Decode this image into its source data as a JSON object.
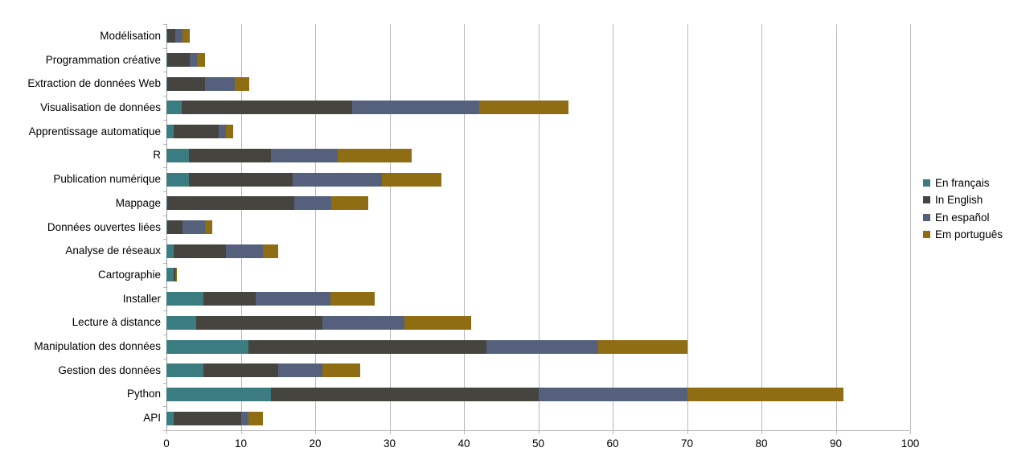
{
  "chart_data": {
    "type": "bar",
    "orientation": "horizontal",
    "stacked": true,
    "title": "",
    "xlabel": "",
    "ylabel": "",
    "xlim": [
      0,
      100
    ],
    "x_ticks": [
      0,
      10,
      20,
      30,
      40,
      50,
      60,
      70,
      80,
      90,
      100
    ],
    "grid": true,
    "legend_position": "right",
    "background_color": "#ffffff",
    "gridline_color": "#b9b9b9",
    "axis_line_color": "#9a9a9a",
    "categories": [
      "Modélisation",
      "Programmation créative",
      "Extraction de données Web",
      "Visualisation de données",
      "Apprentissage automatique",
      "R",
      "Publication numérique",
      "Mappage",
      "Données ouvertes liées",
      "Analyse de réseaux",
      "Cartographie",
      "Installer",
      "Lecture à distance",
      "Manipulation des données",
      "Gestion des données",
      "Python",
      "API"
    ],
    "series": [
      {
        "name": "En français",
        "color": "#3b7c80",
        "values": [
          0,
          0,
          0,
          2,
          1,
          3,
          3,
          0,
          0,
          1,
          1,
          5,
          4,
          11,
          5,
          14,
          1
        ]
      },
      {
        "name": "In English",
        "color": "#45443e",
        "values": [
          1,
          3,
          5,
          23,
          6,
          11,
          14,
          17,
          2,
          7,
          0,
          7,
          17,
          32,
          10,
          36,
          9
        ]
      },
      {
        "name": "En español",
        "color": "#55617c",
        "values": [
          1,
          1,
          4,
          17,
          1,
          9,
          12,
          5,
          3,
          5,
          0,
          10,
          11,
          15,
          6,
          20,
          1
        ]
      },
      {
        "name": "Em português",
        "color": "#8f6d13",
        "values": [
          1,
          1,
          2,
          12,
          1,
          10,
          8,
          5,
          1,
          2,
          0,
          6,
          9,
          12,
          5,
          21,
          2
        ]
      }
    ]
  }
}
